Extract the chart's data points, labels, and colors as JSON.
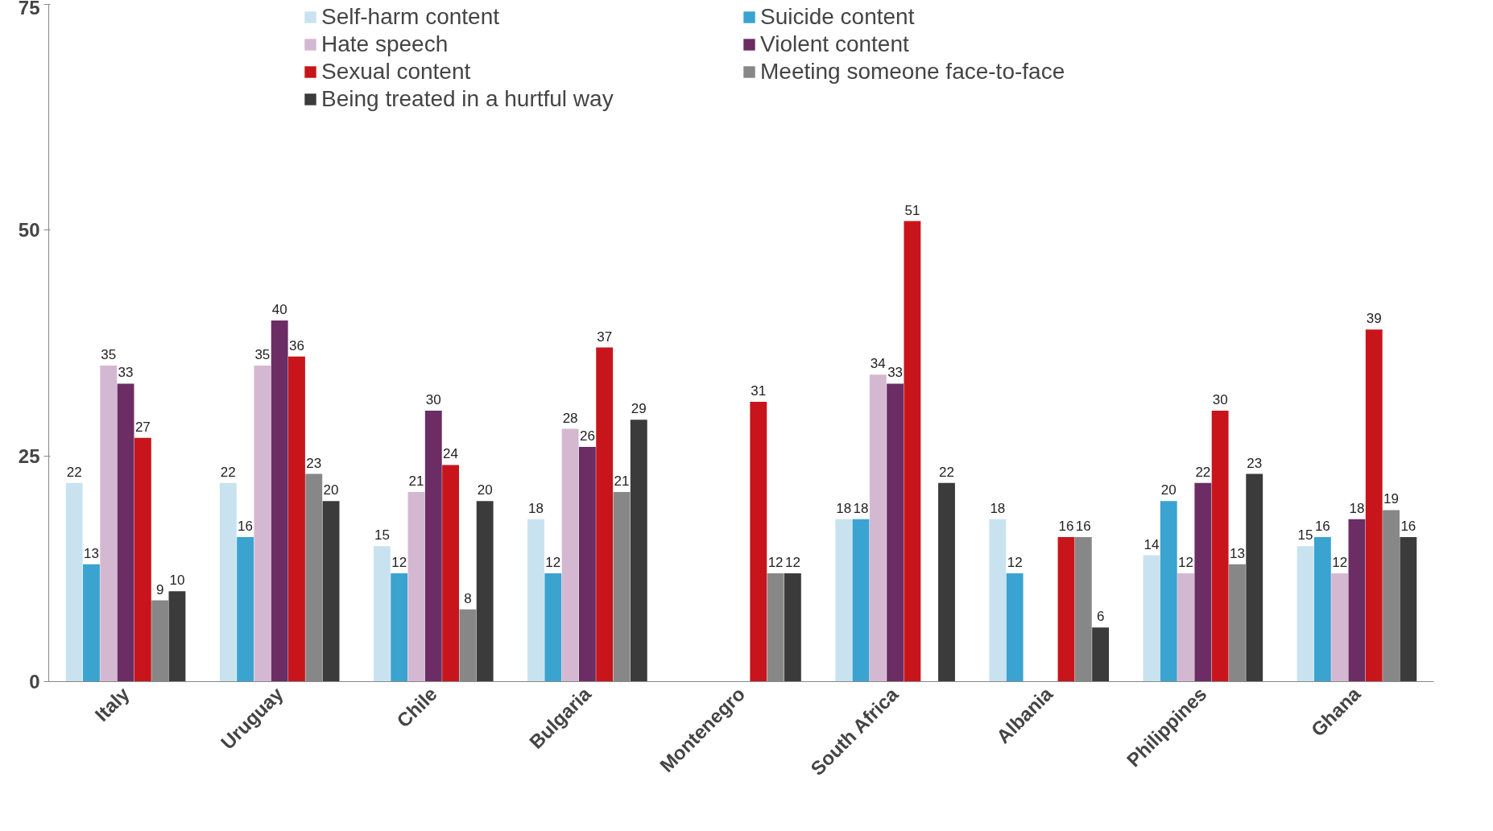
{
  "chart_data": {
    "type": "bar",
    "categories": [
      "Italy",
      "Uruguay",
      "Chile",
      "Bulgaria",
      "Montenegro",
      "South Africa",
      "Albania",
      "Philippines",
      "Ghana"
    ],
    "series": [
      {
        "name": "Self-harm content",
        "color": "#c8e3ef",
        "values": [
          22,
          22,
          15,
          18,
          null,
          18,
          18,
          14,
          15
        ]
      },
      {
        "name": "Suicide content",
        "color": "#3aa3d0",
        "values": [
          13,
          16,
          12,
          12,
          null,
          18,
          12,
          20,
          16
        ]
      },
      {
        "name": "Hate speech",
        "color": "#d4b8d2",
        "values": [
          35,
          35,
          21,
          28,
          null,
          34,
          null,
          12,
          12
        ]
      },
      {
        "name": "Violent content",
        "color": "#6b2d64",
        "values": [
          33,
          40,
          30,
          26,
          null,
          33,
          null,
          22,
          18
        ]
      },
      {
        "name": "Sexual content",
        "color": "#c8151b",
        "values": [
          27,
          36,
          24,
          37,
          31,
          51,
          16,
          30,
          39
        ]
      },
      {
        "name": "Meeting someone face-to-face",
        "color": "#878787",
        "values": [
          9,
          23,
          8,
          21,
          12,
          null,
          16,
          13,
          19
        ]
      },
      {
        "name": "Being treated in a hurtful way",
        "color": "#3b3b3b",
        "values": [
          10,
          20,
          20,
          29,
          12,
          22,
          6,
          23,
          16
        ]
      }
    ],
    "ylim": [
      0,
      75
    ],
    "yticks": [
      0,
      25,
      50,
      75
    ],
    "grid": false,
    "legend": "top",
    "data_labels": true
  }
}
